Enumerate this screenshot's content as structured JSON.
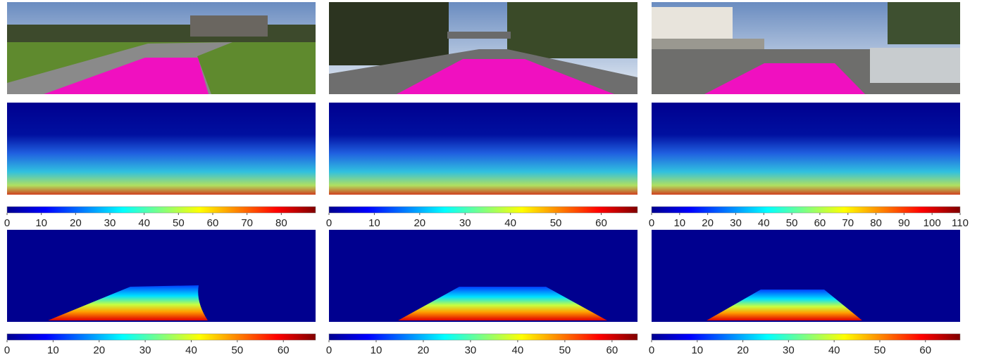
{
  "colorbars": [
    {
      "lim": [
        0,
        90
      ],
      "ticks": [
        0,
        10,
        20,
        30,
        40,
        50,
        60,
        70,
        80
      ]
    },
    {
      "lim": [
        0,
        68
      ],
      "ticks": [
        0,
        10,
        20,
        30,
        40,
        50,
        60
      ]
    },
    {
      "lim": [
        0,
        110
      ],
      "ticks": [
        0,
        10,
        20,
        30,
        40,
        50,
        60,
        70,
        80,
        90,
        100,
        110
      ]
    },
    {
      "lim": [
        0,
        67
      ],
      "ticks": [
        0,
        10,
        20,
        30,
        40,
        50,
        60
      ]
    },
    {
      "lim": [
        0,
        65.4
      ],
      "ticks": [
        0,
        10,
        20,
        30,
        40,
        50,
        60
      ]
    },
    {
      "lim": [
        0,
        67.6
      ],
      "ticks": [
        0,
        10,
        20,
        30,
        40,
        50,
        60
      ]
    }
  ]
}
